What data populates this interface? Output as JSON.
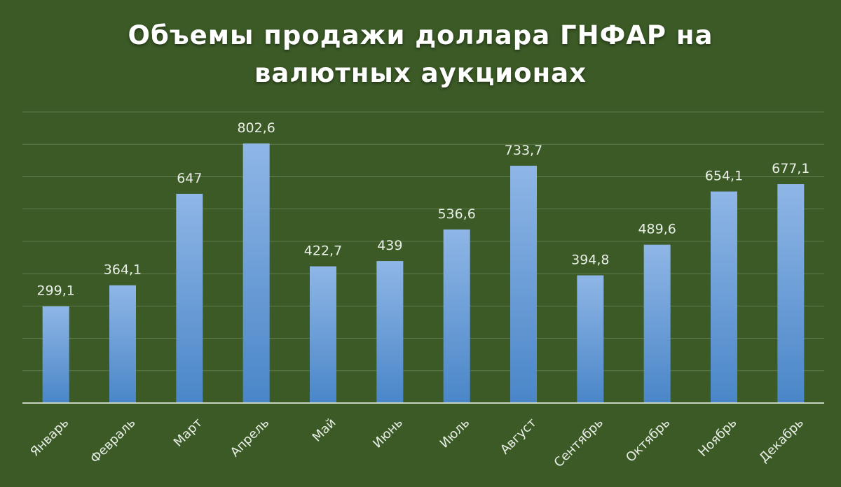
{
  "title_line1": "Объемы продажи доллара ГНФАР на",
  "title_line2": "валютных аукционах",
  "colors": {
    "background": "#3b5a26",
    "bar_top": "#8fb6e6",
    "bar_bottom": "#4a86c8",
    "gridline": "#5f7a4d",
    "axis": "#c9d3c2",
    "label_text": "#e9eee6"
  },
  "chart_data": {
    "type": "bar",
    "title": "Объемы продажи доллара ГНФАР на валютных аукционах",
    "categories": [
      "Январь",
      "Февраль",
      "Март",
      "Апрель",
      "Май",
      "Июнь",
      "Июль",
      "Август",
      "Сентябрь",
      "Октябрь",
      "Ноябрь",
      "Декабрь"
    ],
    "values": [
      299.1,
      364.1,
      647,
      802.6,
      422.7,
      439,
      536.6,
      733.7,
      394.8,
      489.6,
      654.1,
      677.1
    ],
    "value_labels": [
      "299,1",
      "364,1",
      "647",
      "802,6",
      "422,7",
      "439",
      "536,6",
      "733,7",
      "394,8",
      "489,6",
      "654,1",
      "677,1"
    ],
    "ylim": [
      0,
      900
    ],
    "grid": true,
    "legend": "none",
    "xlabel": "",
    "ylabel": ""
  }
}
